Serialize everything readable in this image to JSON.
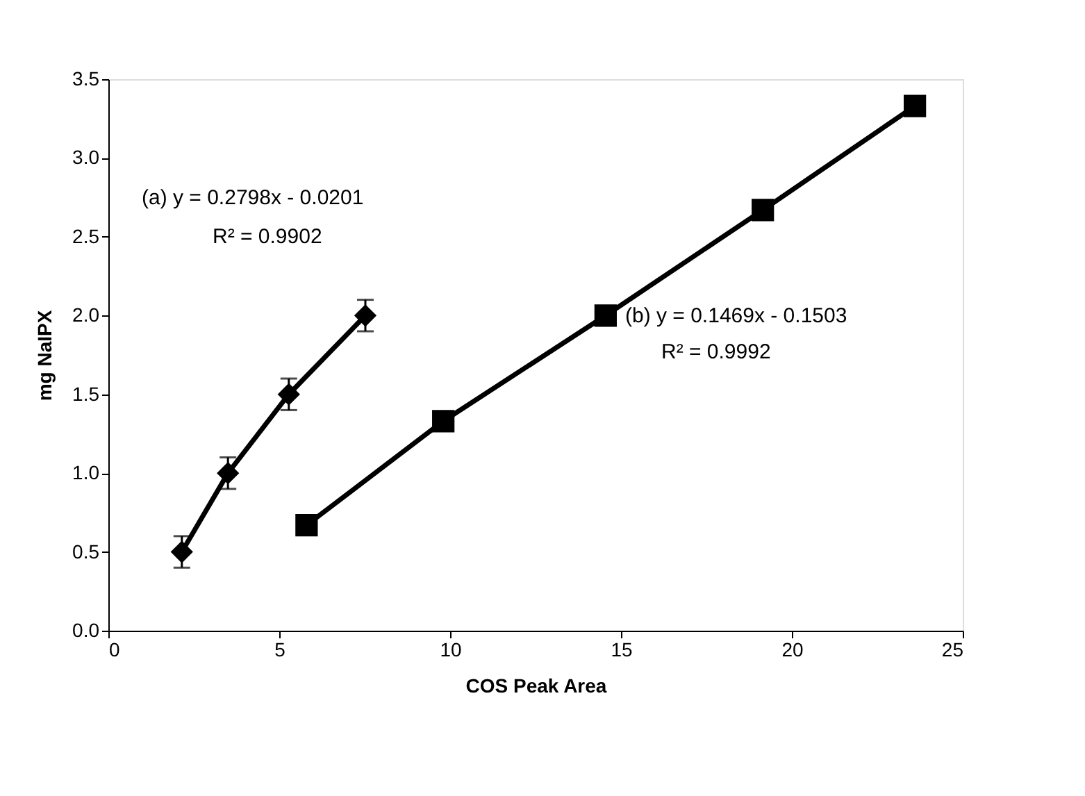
{
  "chart_data": {
    "type": "line",
    "xlabel": "COS Peak Area",
    "ylabel": "mg NaIPX",
    "xlim": [
      0,
      25
    ],
    "xticks": [
      0,
      5,
      10,
      15,
      20,
      25
    ],
    "ylim": [
      0,
      3.5
    ],
    "yticks": [
      {
        "value": 0,
        "label": "0.0"
      },
      0.5,
      {
        "value": 1,
        "label": "1.0"
      },
      1.5,
      {
        "value": 2,
        "label": "2.0"
      },
      2.5,
      {
        "value": 3,
        "label": "3.0"
      },
      3.5
    ],
    "grid": false,
    "legend": false,
    "line_style": "solid",
    "series": [
      {
        "color": "#000000",
        "marker": "diamond",
        "x": [
          2.15,
          3.5,
          5.28,
          7.52
        ],
        "values": [
          0.5,
          1.0,
          1.5,
          2.0
        ],
        "errors": [
          0.1,
          0.1,
          0.1,
          0.1
        ]
      },
      {
        "color": "#000000",
        "marker": "square",
        "x": [
          5.8,
          9.8,
          14.55,
          19.15,
          23.6
        ],
        "values": [
          0.67,
          1.33,
          2.0,
          2.67,
          3.33
        ]
      }
    ],
    "annotations": [
      "(a)  y = 0.2798x - 0.0201",
      "R² = 0.9902",
      "(b)  y = 0.1469x - 0.1503",
      "R² = 0.9992"
    ]
  }
}
